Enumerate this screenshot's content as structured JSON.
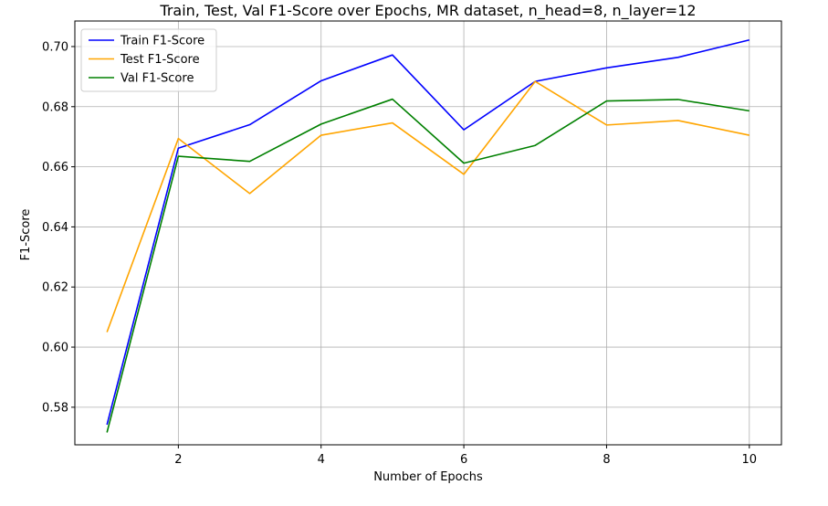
{
  "chart_data": {
    "type": "line",
    "title": "Train, Test, Val F1-Score over Epochs, MR dataset, n_head=8, n_layer=12",
    "xlabel": "Number of Epochs",
    "ylabel": "F1-Score",
    "x": [
      1,
      2,
      3,
      4,
      5,
      6,
      7,
      8,
      9,
      10
    ],
    "xlim": [
      0.55,
      10.45
    ],
    "ylim": [
      0.5675,
      0.7085
    ],
    "xticks": [
      2,
      4,
      6,
      8,
      10
    ],
    "yticks": [
      0.58,
      0.6,
      0.62,
      0.64,
      0.66,
      0.68,
      0.7
    ],
    "xtick_labels": [
      "2",
      "4",
      "6",
      "8",
      "10"
    ],
    "ytick_labels": [
      "0.58",
      "0.60",
      "0.62",
      "0.64",
      "0.66",
      "0.68",
      "0.70"
    ],
    "grid": true,
    "legend_position": "top-left",
    "series": [
      {
        "name": "Train F1-Score",
        "color": "#0000ff",
        "values": [
          0.5742,
          0.6662,
          0.674,
          0.6886,
          0.6972,
          0.6723,
          0.6884,
          0.6929,
          0.6964,
          0.7022
        ]
      },
      {
        "name": "Test F1-Score",
        "color": "#ffa500",
        "values": [
          0.605,
          0.6694,
          0.6511,
          0.6705,
          0.6746,
          0.6575,
          0.6884,
          0.6739,
          0.6754,
          0.6705
        ]
      },
      {
        "name": "Val F1-Score",
        "color": "#008000",
        "values": [
          0.5716,
          0.6635,
          0.6618,
          0.6742,
          0.6825,
          0.6612,
          0.6671,
          0.6819,
          0.6824,
          0.6786
        ]
      }
    ]
  }
}
